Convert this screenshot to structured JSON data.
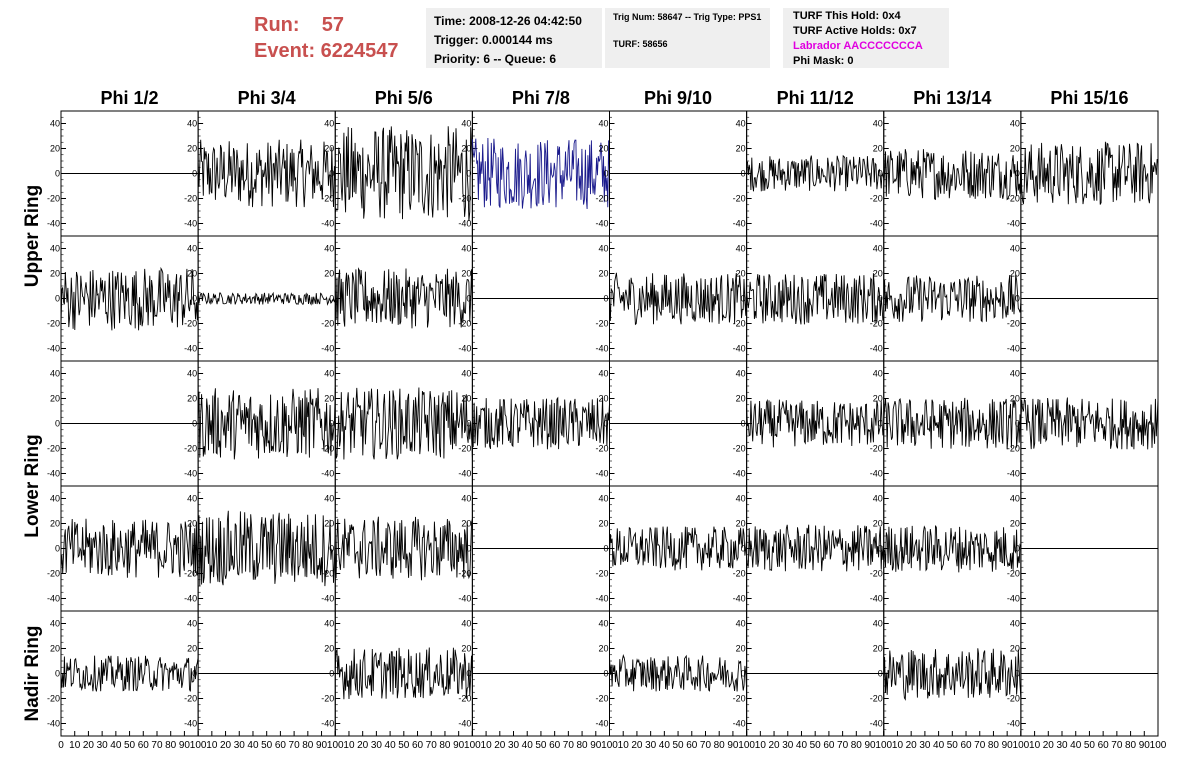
{
  "header": {
    "run_label": "Run:    57",
    "event_label": "Event: 6224547"
  },
  "info": {
    "time": "Time: 2008-12-26 04:42:50",
    "trigger": "Trigger: 0.000144 ms",
    "priority": "Priority: 6 -- Queue: 6",
    "trig_num": "Trig Num: 58647 -- Trig Type: PPS1",
    "turf": "TURF: 58656",
    "turf_hold": "TURF This Hold: 0x4",
    "turf_active": "TURF Active Holds: 0x7",
    "labrador": "Labrador AACCCCCCCA",
    "phi_mask": "Phi Mask: 0"
  },
  "colors": {
    "header_red": "#c8504f",
    "labrador_magenta": "#e000e0",
    "highlight_trace": "#1a1a8c",
    "trace": "#000000",
    "box_bg": "#efefef"
  },
  "chart_data": {
    "type": "line",
    "columns": [
      "Phi 1/2",
      "Phi 3/4",
      "Phi 5/6",
      "Phi 7/8",
      "Phi 9/10",
      "Phi 11/12",
      "Phi 13/14",
      "Phi 15/16"
    ],
    "row_groups": [
      "Upper Ring",
      "Lower Ring",
      "Nadir Ring"
    ],
    "xlim": [
      0,
      100
    ],
    "ylim": [
      -50,
      50
    ],
    "yticks": [
      -40,
      -20,
      0,
      20,
      40
    ],
    "xtick_labels": [
      "0",
      "10",
      "20",
      "30",
      "40",
      "50",
      "60",
      "70",
      "80",
      "90",
      "100"
    ],
    "grid": false,
    "panels": [
      [
        {
          "amp": 0,
          "color": "#000000"
        },
        {
          "amp": 17,
          "color": "#000000"
        },
        {
          "amp": 24,
          "color": "#000000"
        },
        {
          "amp": 18,
          "color": "#1a1a8c"
        },
        {
          "amp": 0,
          "color": "#000000"
        },
        {
          "amp": 9,
          "color": "#000000"
        },
        {
          "amp": 13,
          "color": "#000000"
        },
        {
          "amp": 16,
          "color": "#000000"
        }
      ],
      [
        {
          "amp": 16,
          "color": "#000000"
        },
        {
          "amp": 3,
          "color": "#000000"
        },
        {
          "amp": 15,
          "color": "#000000"
        },
        {
          "amp": 0,
          "color": "#000000"
        },
        {
          "amp": 13,
          "color": "#000000"
        },
        {
          "amp": 13,
          "color": "#000000"
        },
        {
          "amp": 12,
          "color": "#000000"
        },
        {
          "amp": 0,
          "color": "#000000"
        }
      ],
      [
        {
          "amp": 0,
          "color": "#000000"
        },
        {
          "amp": 18,
          "color": "#000000"
        },
        {
          "amp": 18,
          "color": "#000000"
        },
        {
          "amp": 13,
          "color": "#000000"
        },
        {
          "amp": 0,
          "color": "#000000"
        },
        {
          "amp": 12,
          "color": "#000000"
        },
        {
          "amp": 13,
          "color": "#000000"
        },
        {
          "amp": 13,
          "color": "#000000"
        }
      ],
      [
        {
          "amp": 15,
          "color": "#000000"
        },
        {
          "amp": 19,
          "color": "#000000"
        },
        {
          "amp": 16,
          "color": "#000000"
        },
        {
          "amp": 0,
          "color": "#000000"
        },
        {
          "amp": 11,
          "color": "#000000"
        },
        {
          "amp": 12,
          "color": "#000000"
        },
        {
          "amp": 12,
          "color": "#000000"
        },
        {
          "amp": 0,
          "color": "#000000"
        }
      ],
      [
        {
          "amp": 9,
          "color": "#000000"
        },
        {
          "amp": 0,
          "color": "#000000"
        },
        {
          "amp": 13,
          "color": "#000000"
        },
        {
          "amp": 0,
          "color": "#000000"
        },
        {
          "amp": 9,
          "color": "#000000"
        },
        {
          "amp": 0,
          "color": "#000000"
        },
        {
          "amp": 13,
          "color": "#000000"
        },
        {
          "amp": 0,
          "color": "#000000"
        }
      ]
    ]
  }
}
